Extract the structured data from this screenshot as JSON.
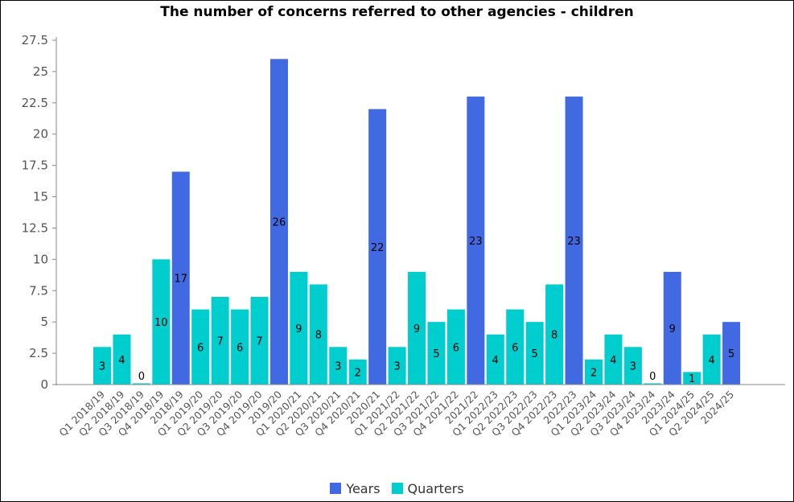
{
  "chart_data": {
    "type": "bar",
    "title": "The number of concerns referred to other agencies - children",
    "xlabel": "",
    "ylabel": "",
    "ylim": [
      0,
      27.5
    ],
    "y_ticks": [
      "0",
      "2.5",
      "5",
      "7.5",
      "10",
      "12.5",
      "15",
      "17.5",
      "20",
      "22.5",
      "25",
      "27.5"
    ],
    "grid": false,
    "legend_position": "bottom-center",
    "series": [
      {
        "name": "Years",
        "color": "#4169e1"
      },
      {
        "name": "Quarters",
        "color": "#00cdcd"
      }
    ],
    "categories": [
      "Q1 2018/19",
      "Q2 2018/19",
      "Q3 2018/19",
      "Q4 2018/19",
      "2018/19",
      "Q1 2019/20",
      "Q2 2019/20",
      "Q3 2019/20",
      "Q4 2019/20",
      "2019/20",
      "Q1 2020/21",
      "Q2 2020/21",
      "Q3 2020/21",
      "Q4 2020/21",
      "2020/21",
      "Q1 2021/22",
      "Q2 2021/22",
      "Q3 2021/22",
      "Q4 2021/22",
      "2021/22",
      "Q1 2022/23",
      "Q2 2022/23",
      "Q3 2022/23",
      "Q4 2022/23",
      "2022/23",
      "Q1 2023/24",
      "Q2 2023/24",
      "Q3 2023/24",
      "Q4 2023/24",
      "2023/24",
      "Q1 2024/25",
      "Q2 2024/25",
      "2024/25"
    ],
    "values": [
      3,
      4,
      0,
      10,
      17,
      6,
      7,
      6,
      7,
      26,
      9,
      8,
      3,
      2,
      22,
      3,
      9,
      5,
      6,
      23,
      4,
      6,
      5,
      8,
      23,
      2,
      4,
      3,
      0,
      9,
      1,
      4,
      5
    ],
    "value_labels": [
      "3",
      "4",
      "0",
      "10",
      "17",
      "6",
      "7",
      "6",
      "7",
      "26",
      "9",
      "8",
      "3",
      "2",
      "22",
      "3",
      "9",
      "5",
      "6",
      "23",
      "4",
      "6",
      "5",
      "8",
      "23",
      "2",
      "4",
      "3",
      "0",
      "9",
      "1",
      "4",
      "5"
    ],
    "bar_series": [
      "Quarters",
      "Quarters",
      "Quarters",
      "Quarters",
      "Years",
      "Quarters",
      "Quarters",
      "Quarters",
      "Quarters",
      "Years",
      "Quarters",
      "Quarters",
      "Quarters",
      "Quarters",
      "Years",
      "Quarters",
      "Quarters",
      "Quarters",
      "Quarters",
      "Years",
      "Quarters",
      "Quarters",
      "Quarters",
      "Quarters",
      "Years",
      "Quarters",
      "Quarters",
      "Quarters",
      "Quarters",
      "Years",
      "Quarters",
      "Quarters",
      "Years"
    ]
  }
}
